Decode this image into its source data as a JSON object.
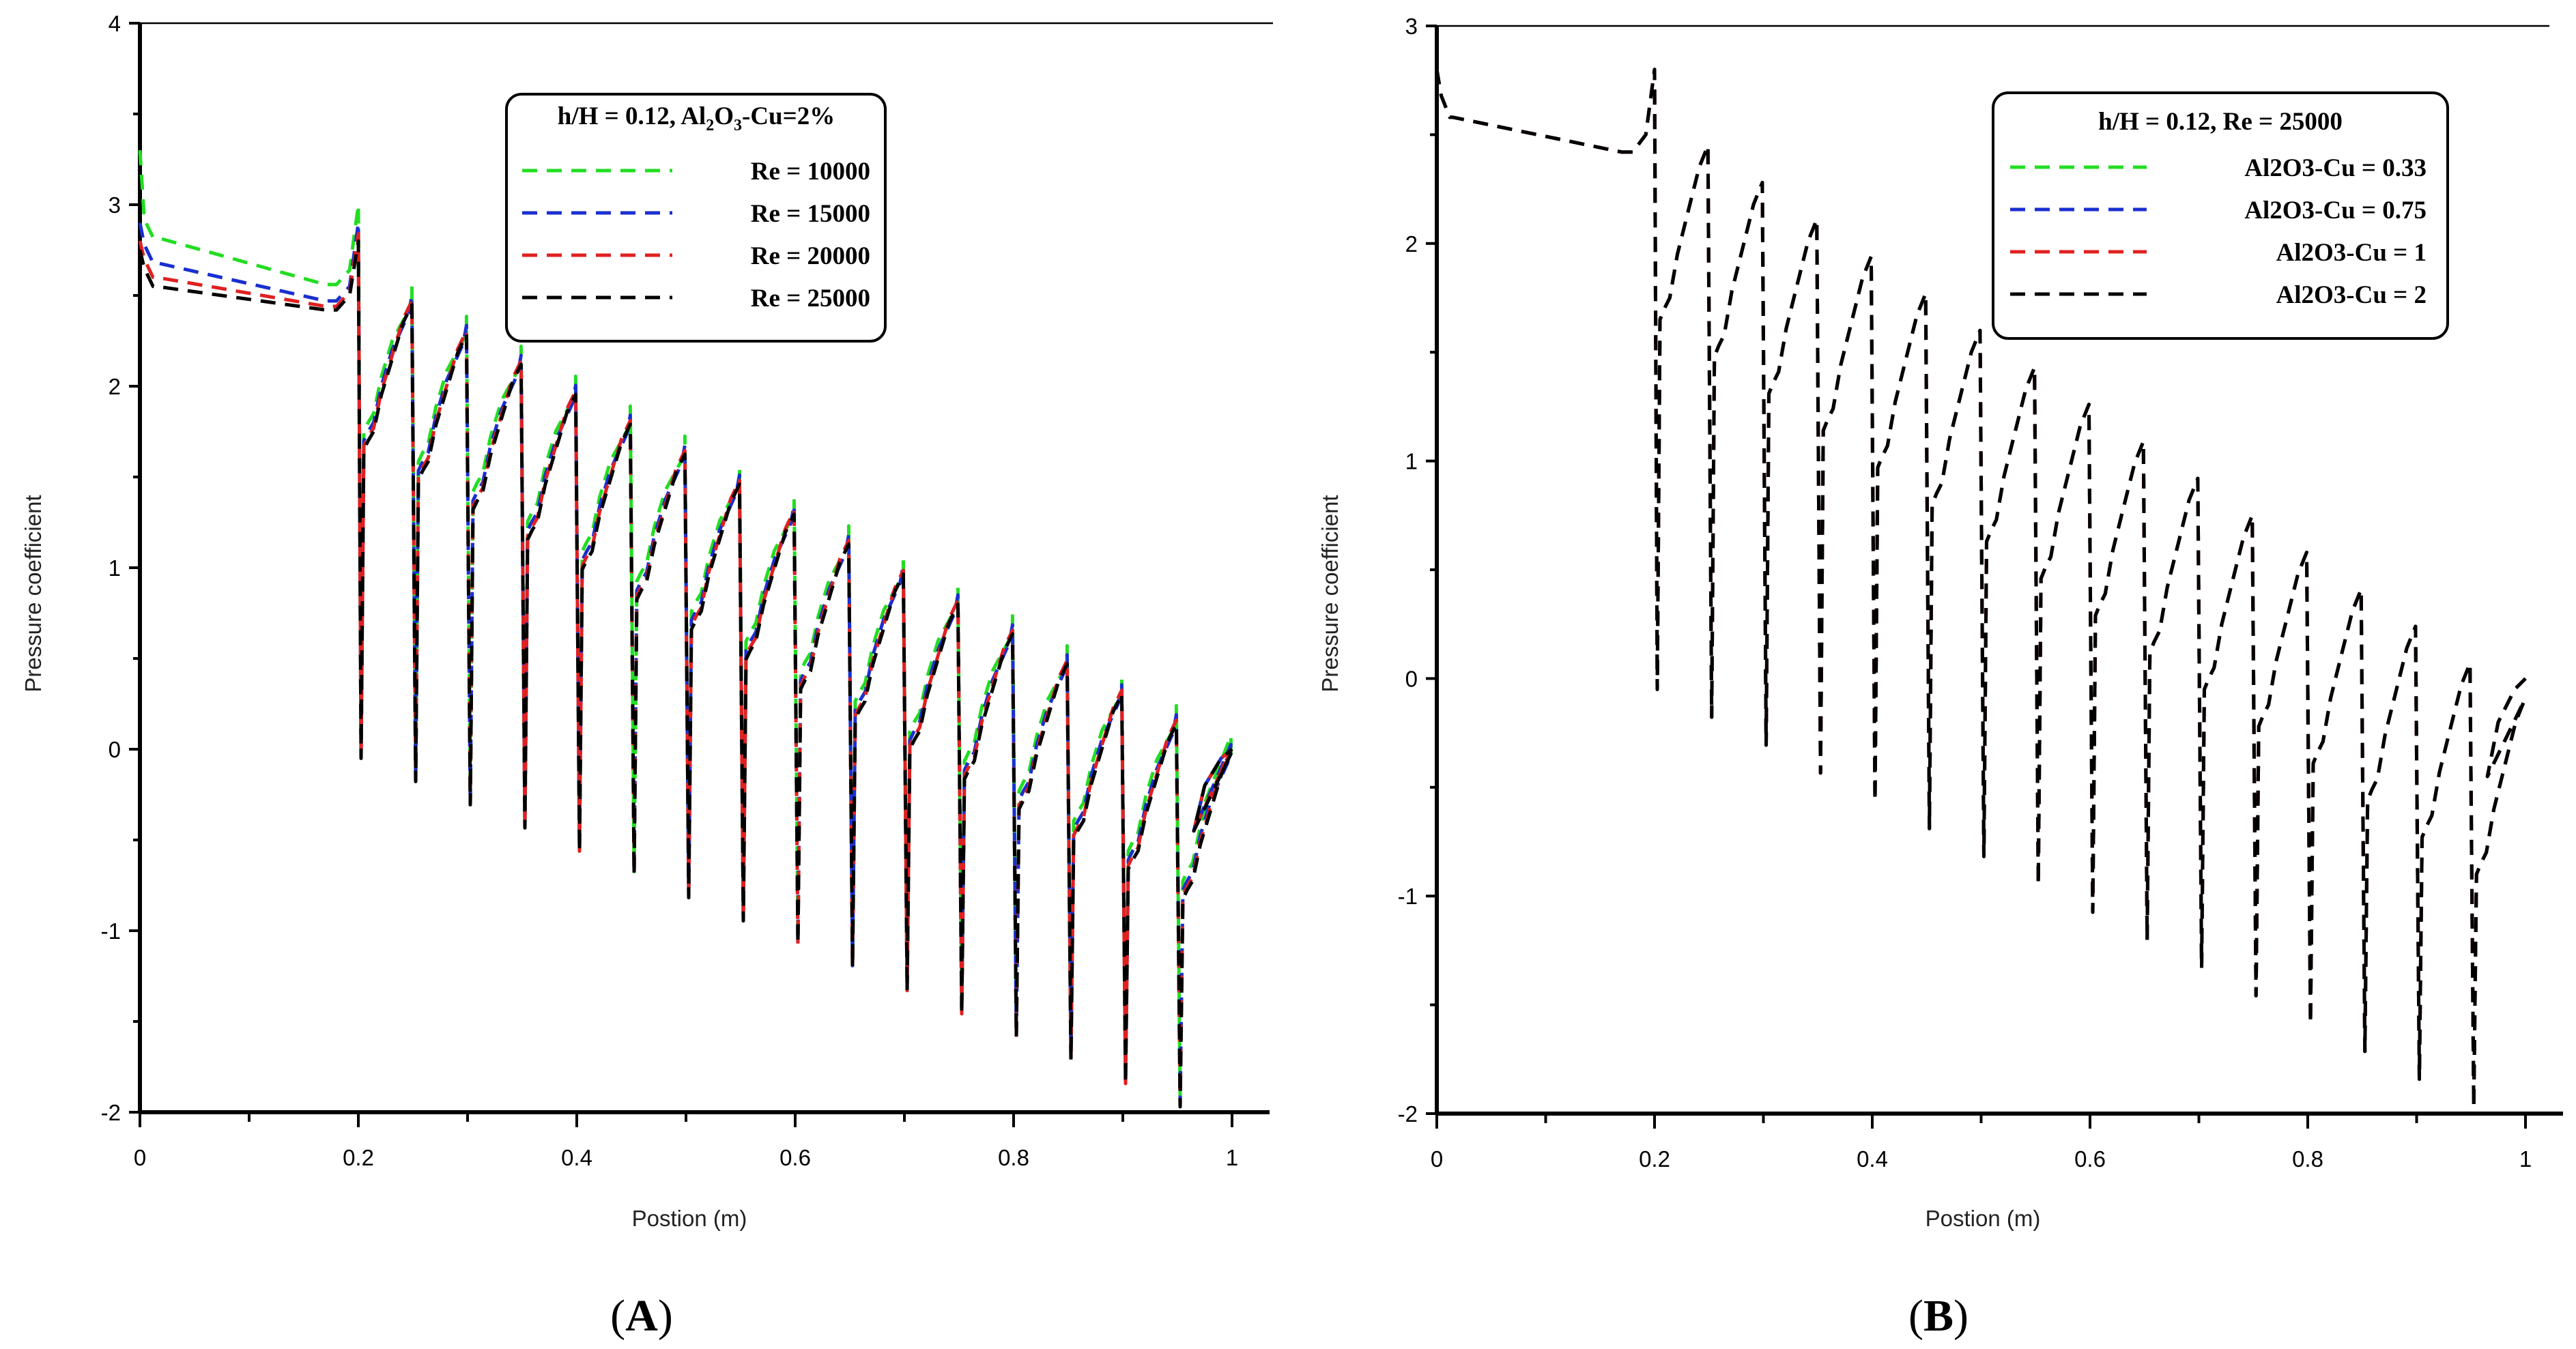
{
  "chart_data": [
    {
      "type": "line",
      "panel": "A",
      "panel_label": "A",
      "title": "",
      "xlabel": "Postion (m)",
      "ylabel": "Pressure coefficient",
      "xlim": [
        0,
        1
      ],
      "ylim": [
        -2,
        4
      ],
      "x_ticks": [
        "0",
        "0.2",
        "0.4",
        "0.6",
        "0.8",
        "1"
      ],
      "y_ticks": [
        "-2",
        "-1",
        "0",
        "1",
        "2",
        "3",
        "4"
      ],
      "legend_title_parts": [
        "h/H = 0.12, Al",
        "2",
        "O",
        "3",
        "-Cu=2%"
      ],
      "legend_position": "top-right",
      "series": [
        {
          "name": "Re = 10000",
          "color": "#22dd22",
          "inlet": [
            3.3,
            2.82,
            2.56,
            2.56
          ],
          "peak_offset": 0.008,
          "cycle": {
            "min_start": -0.05,
            "min_step": -0.125,
            "peak_start": 2.55,
            "peak_step": -0.165
          }
        },
        {
          "name": "Re = 15000",
          "color": "#1a2fd0",
          "inlet": [
            2.9,
            2.68,
            2.47,
            2.47
          ],
          "peak_offset": 0.005,
          "cycle": {
            "min_start": -0.05,
            "min_step": -0.127,
            "peak_start": 2.5,
            "peak_step": -0.165
          }
        },
        {
          "name": "Re = 20000",
          "color": "#e02020",
          "inlet": [
            2.8,
            2.6,
            2.44,
            2.44
          ],
          "peak_offset": 0.0,
          "cycle": {
            "min_start": -0.05,
            "min_step": -0.128,
            "peak_start": 2.47,
            "peak_step": -0.165
          }
        },
        {
          "name": "Re = 25000",
          "color": "#000000",
          "inlet": [
            2.75,
            2.55,
            2.42,
            2.42
          ],
          "peak_offset": 0.0,
          "cycle": {
            "min_start": -0.05,
            "min_step": -0.128,
            "peak_start": 2.45,
            "peak_step": -0.165
          }
        }
      ]
    },
    {
      "type": "line",
      "panel": "B",
      "panel_label": "B",
      "title": "",
      "xlabel": "Postion (m)",
      "ylabel": "Pressure coefficient",
      "xlim": [
        0,
        1
      ],
      "ylim": [
        -2,
        3
      ],
      "x_ticks": [
        "0",
        "0.2",
        "0.4",
        "0.6",
        "0.8",
        "1"
      ],
      "y_ticks": [
        "-2",
        "-1",
        "0",
        "1",
        "2",
        "3"
      ],
      "legend_title": "h/H = 0.12, Re = 25000",
      "legend_position": "top-right",
      "series": [
        {
          "name": "Al2O3-Cu = 0.33",
          "color": "#22dd22",
          "inlet": [
            2.8,
            2.58,
            2.42,
            2.42
          ],
          "peak_offset": 0.0,
          "cycle": {
            "min_start": -0.05,
            "min_step": -0.128,
            "peak_start": 2.45,
            "peak_step": -0.17
          }
        },
        {
          "name": "Al2O3-Cu = 0.75",
          "color": "#1a2fd0",
          "inlet": [
            2.8,
            2.58,
            2.42,
            2.42
          ],
          "peak_offset": 0.0,
          "cycle": {
            "min_start": -0.05,
            "min_step": -0.128,
            "peak_start": 2.45,
            "peak_step": -0.17
          }
        },
        {
          "name": "Al2O3-Cu = 1",
          "color": "#e02020",
          "inlet": [
            2.8,
            2.58,
            2.42,
            2.42
          ],
          "peak_offset": 0.0,
          "cycle": {
            "min_start": -0.05,
            "min_step": -0.128,
            "peak_start": 2.45,
            "peak_step": -0.17
          }
        },
        {
          "name": "Al2O3-Cu = 2",
          "color": "#000000",
          "inlet": [
            2.8,
            2.58,
            2.42,
            2.42
          ],
          "peak_offset": 0.0,
          "cycle": {
            "min_start": -0.05,
            "min_step": -0.128,
            "peak_start": 2.45,
            "peak_step": -0.17
          }
        }
      ]
    }
  ]
}
